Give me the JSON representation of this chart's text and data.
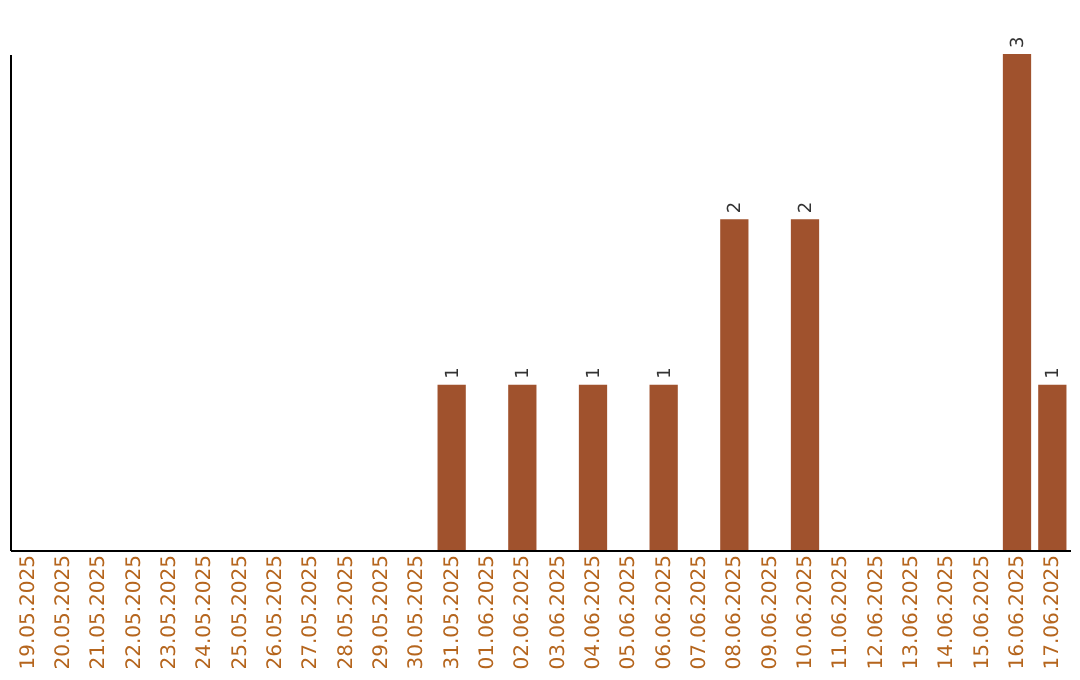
{
  "chart_data": {
    "type": "bar",
    "categories": [
      "19.05.2025",
      "20.05.2025",
      "21.05.2025",
      "22.05.2025",
      "23.05.2025",
      "24.05.2025",
      "25.05.2025",
      "26.05.2025",
      "27.05.2025",
      "28.05.2025",
      "29.05.2025",
      "30.05.2025",
      "31.05.2025",
      "01.06.2025",
      "02.06.2025",
      "03.06.2025",
      "04.06.2025",
      "05.06.2025",
      "06.06.2025",
      "07.06.2025",
      "08.06.2025",
      "09.06.2025",
      "10.06.2025",
      "11.06.2025",
      "12.06.2025",
      "13.06.2025",
      "14.06.2025",
      "15.06.2025",
      "16.06.2025",
      "17.06.2025"
    ],
    "values": [
      null,
      null,
      null,
      null,
      null,
      null,
      null,
      null,
      null,
      null,
      null,
      null,
      1,
      null,
      1,
      null,
      1,
      null,
      1,
      null,
      2,
      null,
      2,
      null,
      null,
      null,
      null,
      null,
      3,
      1
    ],
    "data_labels": true,
    "color": "#a0522d",
    "grid": false
  }
}
